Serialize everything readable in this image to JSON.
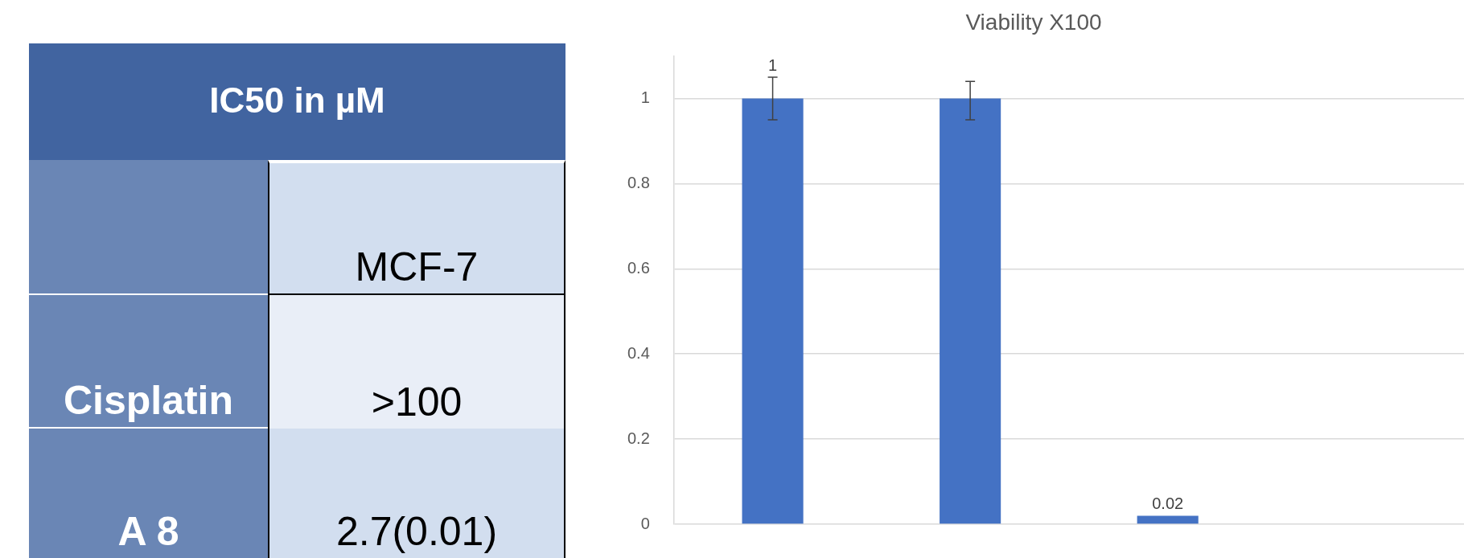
{
  "chart_data": [
    {
      "type": "other",
      "title": "IC50 in µM",
      "categories": [
        "MCF-7"
      ],
      "y_categories": [
        "Cisplatin",
        "A 8"
      ],
      "cell_labels": [
        [
          ">100"
        ],
        [
          "2.7(0.01)"
        ]
      ]
    },
    {
      "type": "bar",
      "title": "Viability X100",
      "categories": [
        null,
        null,
        null,
        null
      ],
      "series": [
        {
          "color": "#4472c4",
          "values": [
            1,
            1,
            0.02,
            null
          ],
          "errors": [
            0.05,
            [
              0.95,
              1.04
            ],
            null,
            null
          ],
          "value_labels": [
            "1",
            null,
            "0.02",
            null
          ]
        }
      ],
      "ylim": [
        0,
        1.1
      ],
      "yticks": [
        0,
        0.2,
        0.4,
        0.6,
        0.8,
        1
      ],
      "grid": "y",
      "legend": false
    }
  ]
}
